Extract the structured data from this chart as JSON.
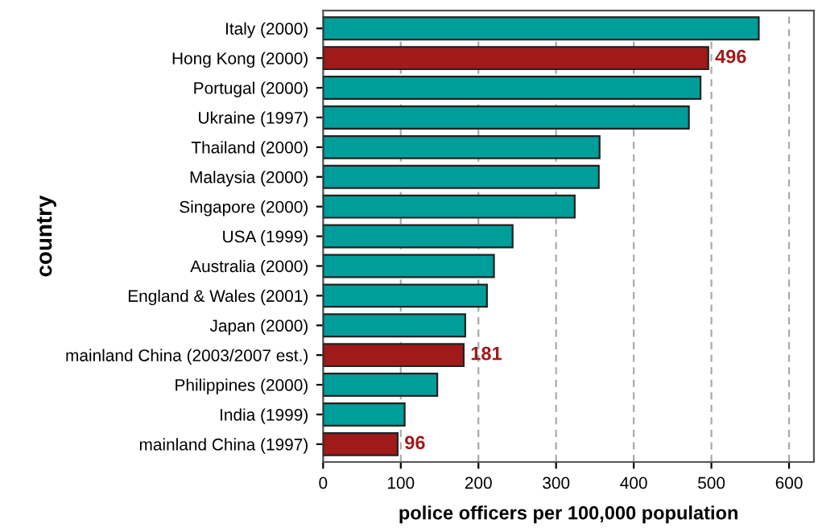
{
  "chart_data": {
    "type": "bar",
    "orientation": "horizontal",
    "xlabel": "police officers per 100,000 population",
    "ylabel": "country",
    "categories": [
      "Italy (2000)",
      "Hong Kong (2000)",
      "Portugal (2000)",
      "Ukraine (1997)",
      "Thailand (2000)",
      "Malaysia (2000)",
      "Singapore (2000)",
      "USA (1999)",
      "Australia (2000)",
      "England & Wales (2001)",
      "Japan (2000)",
      "mainland China (2003/2007 est.)",
      "Philippines (2000)",
      "India (1999)",
      "mainland China (1997)"
    ],
    "values": [
      561,
      496,
      486,
      471,
      356,
      355,
      324,
      244,
      220,
      211,
      183,
      181,
      147,
      105,
      96
    ],
    "colors": [
      "#009e9a",
      "#a01a1a",
      "#009e9a",
      "#009e9a",
      "#009e9a",
      "#009e9a",
      "#009e9a",
      "#009e9a",
      "#009e9a",
      "#009e9a",
      "#009e9a",
      "#a01a1a",
      "#009e9a",
      "#009e9a",
      "#a01a1a"
    ],
    "value_labels": [
      null,
      "496",
      null,
      null,
      null,
      null,
      null,
      null,
      null,
      null,
      null,
      "181",
      null,
      null,
      "96"
    ],
    "xlim": [
      0,
      632
    ],
    "xticks": [
      0,
      100,
      200,
      300,
      400,
      500,
      600
    ],
    "grid": "x"
  }
}
